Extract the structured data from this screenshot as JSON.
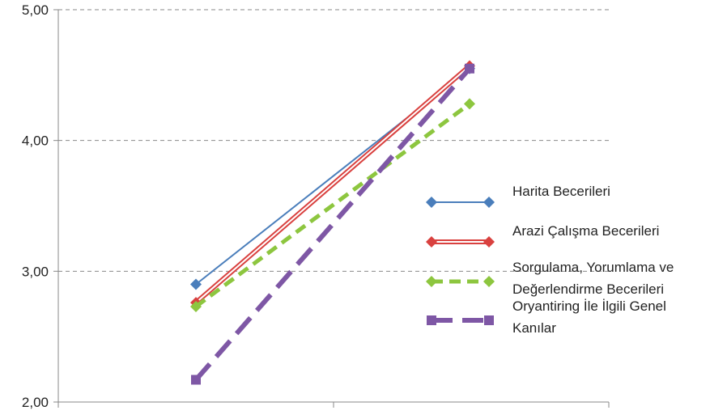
{
  "chart_data": {
    "type": "line",
    "title": "",
    "xlabel": "",
    "ylabel": "",
    "categories": [
      "",
      ""
    ],
    "ylim": [
      2.0,
      5.0
    ],
    "yticks": [
      "2,00",
      "3,00",
      "4,00",
      "5,00"
    ],
    "grid": true,
    "legend_position": "right",
    "series": [
      {
        "name": "Harita Becerileri",
        "values": [
          2.9,
          4.55
        ],
        "color": "#4a7ebb",
        "style": "solid",
        "marker": "diamond"
      },
      {
        "name": "Arazi Çalışma Becerileri",
        "values": [
          2.76,
          4.57
        ],
        "color": "#d9413f",
        "style": "double",
        "marker": "diamond"
      },
      {
        "name_lines": [
          "Sorgulama, Yorumlama ve",
          "Değerlendirme Becerileri"
        ],
        "values": [
          2.73,
          4.28
        ],
        "color": "#8dc63f",
        "style": "dashed",
        "marker": "diamond"
      },
      {
        "name_lines": [
          "Oryantiring İle İlgili Genel",
          "Kanılar"
        ],
        "values": [
          2.17,
          4.55
        ],
        "color": "#7e57a5",
        "style": "longdash",
        "marker": "square"
      }
    ]
  }
}
